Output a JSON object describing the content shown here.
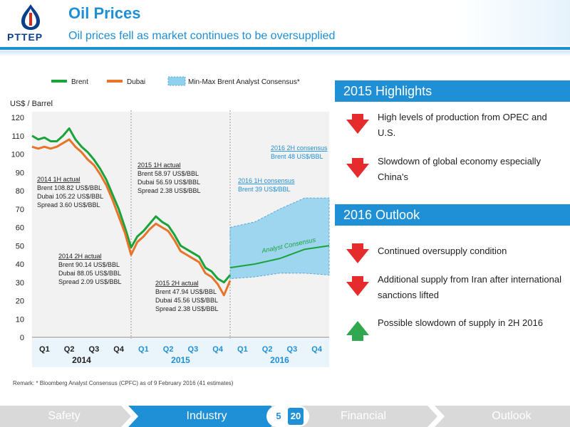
{
  "header": {
    "logo_text": "PTTEP",
    "title": "Oil Prices",
    "subtitle": "Oil prices fell as market continues to be oversupplied"
  },
  "chart_data": {
    "type": "line",
    "ylabel": "US$ / Barrel",
    "ylim": [
      0,
      120
    ],
    "yticks": [
      0,
      10,
      20,
      30,
      40,
      50,
      60,
      70,
      80,
      90,
      100,
      110,
      120
    ],
    "xlim": [
      0,
      12
    ],
    "quarter_labels": [
      "Q1",
      "Q2",
      "Q3",
      "Q4",
      "Q1",
      "Q2",
      "Q3",
      "Q4",
      "Q1",
      "Q2",
      "Q3",
      "Q4"
    ],
    "quarter_colors": [
      "#222222",
      "#222222",
      "#222222",
      "#222222",
      "#1f8fd6",
      "#1f8fd6",
      "#1f8fd6",
      "#1f8fd6",
      "#1f8fd6",
      "#1f8fd6",
      "#1f8fd6",
      "#1f8fd6"
    ],
    "year_labels": [
      "2014",
      "2015",
      "2016"
    ],
    "year_colors": [
      "#222222",
      "#1f8fd6",
      "#1f8fd6"
    ],
    "legend": [
      {
        "name": "Brent",
        "color": "#1aa33a"
      },
      {
        "name": "Dubai",
        "color": "#e8742a"
      },
      {
        "name": "Min-Max Brent Analyst Consensus*",
        "color": "#8fd0ee"
      }
    ],
    "series": [
      {
        "name": "Brent",
        "color": "#1aa33a",
        "x": [
          0,
          0.25,
          0.5,
          0.75,
          1.0,
          1.25,
          1.5,
          1.75,
          2.0,
          2.25,
          2.5,
          2.75,
          3.0,
          3.25,
          3.5,
          3.75,
          4.0,
          4.25,
          4.5,
          4.75,
          5.0,
          5.25,
          5.5,
          5.75,
          6.0,
          6.25,
          6.5,
          6.75,
          7.0,
          7.25,
          7.5,
          7.75,
          8.0
        ],
        "y": [
          110,
          108,
          109,
          107,
          107,
          110,
          114,
          108,
          104,
          101,
          97,
          92,
          86,
          78,
          70,
          60,
          49,
          55,
          58,
          62,
          66,
          63,
          61,
          56,
          50,
          48,
          46,
          44,
          38,
          36,
          32,
          30,
          34
        ]
      },
      {
        "name": "Dubai",
        "color": "#e8742a",
        "x": [
          0,
          0.25,
          0.5,
          0.75,
          1.0,
          1.25,
          1.5,
          1.75,
          2.0,
          2.25,
          2.5,
          2.75,
          3.0,
          3.25,
          3.5,
          3.75,
          4.0,
          4.25,
          4.5,
          4.75,
          5.0,
          5.25,
          5.5,
          5.75,
          6.0,
          6.25,
          6.5,
          6.75,
          7.0,
          7.25,
          7.5,
          7.75,
          8.0
        ],
        "y": [
          104,
          103,
          104,
          103,
          104,
          106,
          108,
          104,
          101,
          97,
          94,
          89,
          83,
          75,
          66,
          57,
          45,
          52,
          55,
          59,
          62,
          60,
          58,
          53,
          47,
          45,
          43,
          41,
          35,
          33,
          29,
          23,
          31
        ]
      },
      {
        "name": "Analyst Consensus",
        "color": "#1aa33a",
        "x": [
          8.0,
          9.0,
          10.0,
          11.0,
          12.0
        ],
        "y": [
          38,
          40,
          43,
          48,
          50
        ]
      }
    ],
    "consensus_band": {
      "x": [
        8.0,
        9.0,
        10.0,
        11.0,
        12.0
      ],
      "min": [
        32,
        33,
        35,
        35,
        34
      ],
      "max": [
        60,
        63,
        70,
        76,
        76
      ]
    },
    "band_label": "Analyst Consensus",
    "annotations": [
      {
        "title": "2014 1H actual",
        "lines": [
          "Brent   108.82 US$/BBL",
          "Dubai   105.22 US$/BBL",
          "Spread   3.60 US$/BBL"
        ],
        "color": "#222222"
      },
      {
        "title": "2014 2H actual",
        "lines": [
          "Brent   90.14 US$/BBL",
          "Dubai   88.05 US$/BBL",
          "Spread  2.09 US$/BBL"
        ],
        "color": "#222222"
      },
      {
        "title": "2015 1H actual",
        "lines": [
          "Brent   58.97 US$/BBL",
          "Dubai   56.59 US$/BBL",
          "Spread   2.38 US$/BBL"
        ],
        "color": "#222222"
      },
      {
        "title": "2015 2H actual",
        "lines": [
          "Brent   47.94 US$/BBL",
          "Dubai   45.56 US$/BBL",
          "Spread   2.38 US$/BBL"
        ],
        "color": "#222222"
      },
      {
        "title": "2016 1H consensus",
        "lines": [
          "Brent   39 US$/BBL"
        ],
        "color": "#1f8fd6"
      },
      {
        "title": "2016 2H consensus",
        "lines": [
          "Brent   48 US$/BBL"
        ],
        "color": "#1f8fd6"
      }
    ]
  },
  "highlights": {
    "title": "2015 Highlights",
    "items": [
      {
        "text": "High levels of production from OPEC and U.S.",
        "arrow": "down"
      },
      {
        "text": "Slowdown of global economy especially China's",
        "arrow": "down"
      }
    ]
  },
  "outlook": {
    "title": "2016 Outlook",
    "items": [
      {
        "text": "Continued oversupply condition",
        "arrow": "down"
      },
      {
        "text": "Additional supply from Iran after international sanctions lifted",
        "arrow": "down"
      },
      {
        "text": "Possible slowdown of supply in 2H 2016",
        "arrow": "up"
      }
    ]
  },
  "remark": "Remark:  *  Bloomberg Analyst Consensus (CPFC) as of 9 February 2016 (41 estimates)",
  "footer": {
    "tabs": [
      "Safety",
      "Industry",
      "Financial",
      "Outlook"
    ],
    "active_tab": "Industry",
    "page": "5",
    "total": "20",
    "colors": {
      "inactive": "#c9c9c9",
      "active": "#1f8fd6"
    }
  }
}
